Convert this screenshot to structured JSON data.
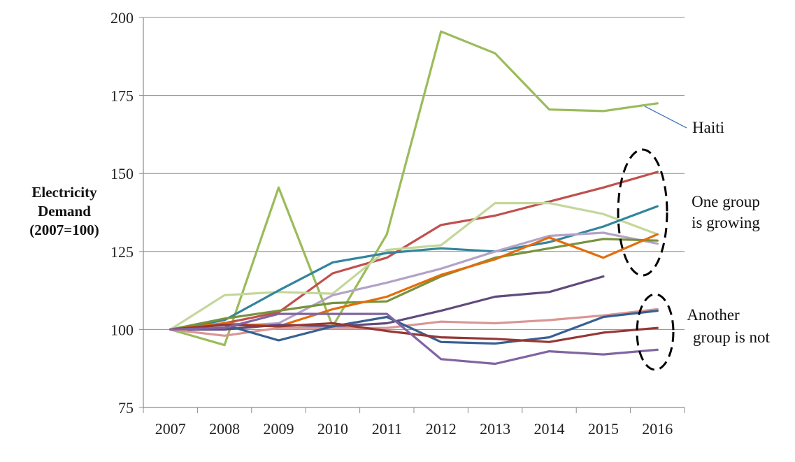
{
  "chart_data": {
    "type": "line",
    "x": [
      "2007",
      "2008",
      "2009",
      "2010",
      "2011",
      "2012",
      "2013",
      "2014",
      "2015",
      "2016"
    ],
    "ylabel_lines": [
      "Electricity",
      "Demand",
      "(2007=100)"
    ],
    "xlabel": "",
    "ylim": [
      75,
      200
    ],
    "yticks": [
      75,
      100,
      125,
      150,
      175,
      200
    ],
    "grid": "horizontal",
    "series": [
      {
        "color": "#9bbb59",
        "values": [
          100,
          95,
          145.5,
          101,
          130.5,
          195.5,
          188.5,
          170.5,
          170,
          172.5
        ]
      },
      {
        "color": "#c0504d",
        "values": [
          100,
          102,
          105.5,
          118,
          123,
          133.5,
          136.5,
          141,
          145.5,
          150.5
        ]
      },
      {
        "color": "#c4d79b",
        "values": [
          100,
          111,
          112,
          111.5,
          125.5,
          127,
          140.5,
          140.5,
          137,
          130.5
        ]
      },
      {
        "color": "#31859c",
        "values": [
          100,
          103,
          112.5,
          121.5,
          124.5,
          126,
          125,
          128,
          133,
          139.5
        ]
      },
      {
        "color": "#b3a2c7",
        "values": [
          100,
          101,
          102,
          111,
          115,
          119.5,
          125,
          130,
          131,
          127.5
        ]
      },
      {
        "color": "#77933c",
        "values": [
          100,
          103.5,
          106,
          108.5,
          109,
          117,
          123,
          126,
          129,
          128.5
        ]
      },
      {
        "color": "#e46c0a",
        "values": [
          100,
          102,
          101,
          106.5,
          110.5,
          117.5,
          122.5,
          129.5,
          123,
          130.5
        ]
      },
      {
        "color": "#604a7b",
        "values": [
          100,
          100,
          101.5,
          101,
          102,
          106,
          110.5,
          112,
          117,
          null
        ]
      },
      {
        "color": "#d99694",
        "values": [
          100,
          98,
          100.5,
          100.5,
          100.5,
          102.5,
          102,
          103,
          104.5,
          106.5
        ]
      },
      {
        "color": "#376092",
        "values": [
          100,
          101.5,
          96.5,
          101,
          104,
          96,
          95.5,
          97.5,
          104,
          106
        ]
      },
      {
        "color": "#953735",
        "values": [
          100,
          101.5,
          101,
          102,
          99.5,
          97.5,
          97,
          96,
          99,
          100.5
        ]
      },
      {
        "color": "#8064a2",
        "values": [
          100,
          100.5,
          105,
          105,
          105,
          90.5,
          89,
          93,
          92,
          93.5
        ]
      }
    ],
    "annotations": {
      "haiti_label": "Haiti",
      "growing_lines": [
        "One group",
        "is growing"
      ],
      "not_growing_lines": [
        "Another",
        "group is not"
      ]
    }
  }
}
